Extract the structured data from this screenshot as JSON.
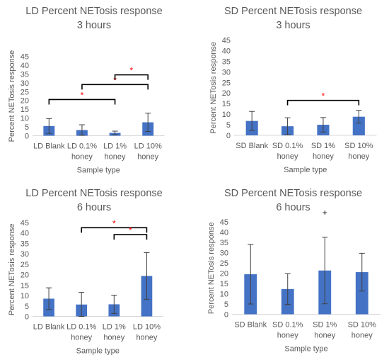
{
  "chart_data": [
    {
      "type": "bar",
      "title": "LD Percent NETosis response 3 hours",
      "xlabel": "Sample type",
      "ylabel": "Percent NETosis response",
      "ylim": [
        0,
        45
      ],
      "yticks": [
        0,
        5,
        10,
        15,
        20,
        25,
        30,
        35,
        40,
        45
      ],
      "categories": [
        [
          "LD Blank"
        ],
        [
          "LD 0.1%",
          "honey"
        ],
        [
          "LD 1%",
          "honey"
        ],
        [
          "LD 10%",
          "honey"
        ]
      ],
      "values": [
        5.5,
        3.2,
        1.6,
        7.6
      ],
      "error": [
        4.2,
        3.0,
        1.0,
        5.2
      ],
      "bar_color": "#4472c4",
      "significance": [
        {
          "from": 0,
          "to": 2,
          "y": 20.5,
          "marker": "*"
        },
        {
          "from": 1,
          "to": 3,
          "y": 29.0,
          "marker": "*"
        },
        {
          "from": 2,
          "to": 3,
          "y": 34.5,
          "marker": "*"
        }
      ]
    },
    {
      "type": "bar",
      "title": "SD Percent NETosis response 3 hours",
      "xlabel": "Sample type",
      "ylabel": "Percent NETosis response",
      "ylim": [
        0,
        45
      ],
      "yticks": [
        0,
        5,
        10,
        15,
        20,
        25,
        30,
        35,
        40,
        45
      ],
      "categories": [
        [
          "SD Blank"
        ],
        [
          "SD 0.1%",
          "honey"
        ],
        [
          "SD 1%",
          "honey"
        ],
        [
          "SD 10%",
          "honey"
        ]
      ],
      "values": [
        6.8,
        4.3,
        5.0,
        8.8
      ],
      "error": [
        4.5,
        4.0,
        3.4,
        3.0
      ],
      "bar_color": "#4472c4",
      "significance": [
        {
          "from": 1,
          "to": 3,
          "y": 16.5,
          "marker": "*"
        }
      ]
    },
    {
      "type": "bar",
      "title": "LD Percent NETosis response 6 hours",
      "xlabel": "Sample type",
      "ylabel": "Percent NETosis response",
      "ylim": [
        0,
        45
      ],
      "yticks": [
        0,
        5,
        10,
        15,
        20,
        25,
        30,
        35,
        40,
        45
      ],
      "categories": [
        [
          "LD Blank"
        ],
        [
          "LD 0.1%",
          "honey"
        ],
        [
          "LD 1%",
          "honey"
        ],
        [
          "LD 10%",
          "honey"
        ]
      ],
      "values": [
        8.5,
        5.7,
        5.8,
        19.4
      ],
      "error": [
        5.2,
        5.8,
        4.4,
        11.2
      ],
      "bar_color": "#4472c4",
      "significance": [
        {
          "from": 1,
          "to": 3,
          "y": 42.5,
          "marker": "*"
        },
        {
          "from": 2,
          "to": 3,
          "y": 39.2,
          "marker": "*"
        }
      ]
    },
    {
      "type": "bar",
      "title": "SD Percent NETosis response 6 hours",
      "xlabel": "Sample type",
      "ylabel": "Percent NETosis response",
      "ylim": [
        0,
        45
      ],
      "yticks": [
        0,
        5,
        10,
        15,
        20,
        25,
        30,
        35,
        40,
        45
      ],
      "categories": [
        [
          "SD Blank"
        ],
        [
          "SD 0.1%",
          "honey"
        ],
        [
          "SD 1%",
          "honey"
        ],
        [
          "SD 10%",
          "honey"
        ]
      ],
      "values": [
        19.5,
        12.3,
        21.3,
        20.5
      ],
      "error": [
        14.5,
        7.5,
        16.2,
        9.2
      ],
      "bar_color": "#4472c4",
      "significance": [],
      "annotations": [
        {
          "category": 2,
          "y": 49.5,
          "marker": "+"
        }
      ]
    }
  ],
  "colors": {
    "axis": "#d9d9d9",
    "text": "#595959",
    "bracket": "#000000",
    "marker": "#ff0000",
    "errorbar": "#404040"
  }
}
